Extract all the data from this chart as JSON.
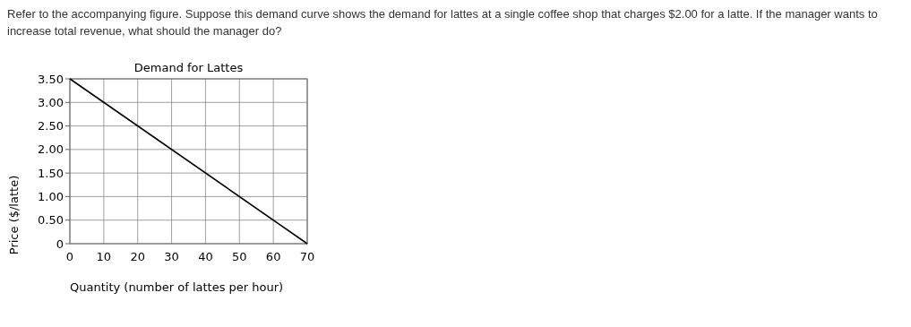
{
  "chart_data": {
    "type": "line",
    "title": "Demand for Lattes",
    "xlabel": "Quantity (number of lattes per hour)",
    "ylabel": "Price ($/latte)",
    "annotations": [
      "Refer to the accompanying figure. Suppose this demand curve shows the demand for lattes at a single coffee shop that charges $2.00 for a latte. If the manager wants to increase total revenue, what should the manager do?"
    ],
    "x": [
      0,
      70
    ],
    "series": [
      {
        "color": "#000000",
        "values": [
          3.5,
          0
        ]
      }
    ],
    "xlim": [
      0,
      70
    ],
    "xticks": [
      0,
      10,
      20,
      30,
      40,
      50,
      60,
      70
    ],
    "ylim": [
      0,
      3.5
    ],
    "yticks": [
      0,
      {
        "value": 0.5,
        "label": "0.50"
      },
      {
        "value": 1,
        "label": "1.00"
      },
      {
        "value": 1.5,
        "label": "1.50"
      },
      {
        "value": 2,
        "label": "2.00"
      },
      {
        "value": 2.5,
        "label": "2.50"
      },
      {
        "value": 3,
        "label": "3.00"
      },
      {
        "value": 3.5,
        "label": "3.50"
      }
    ],
    "grid": true,
    "marker": "none",
    "line_style": "solid"
  }
}
